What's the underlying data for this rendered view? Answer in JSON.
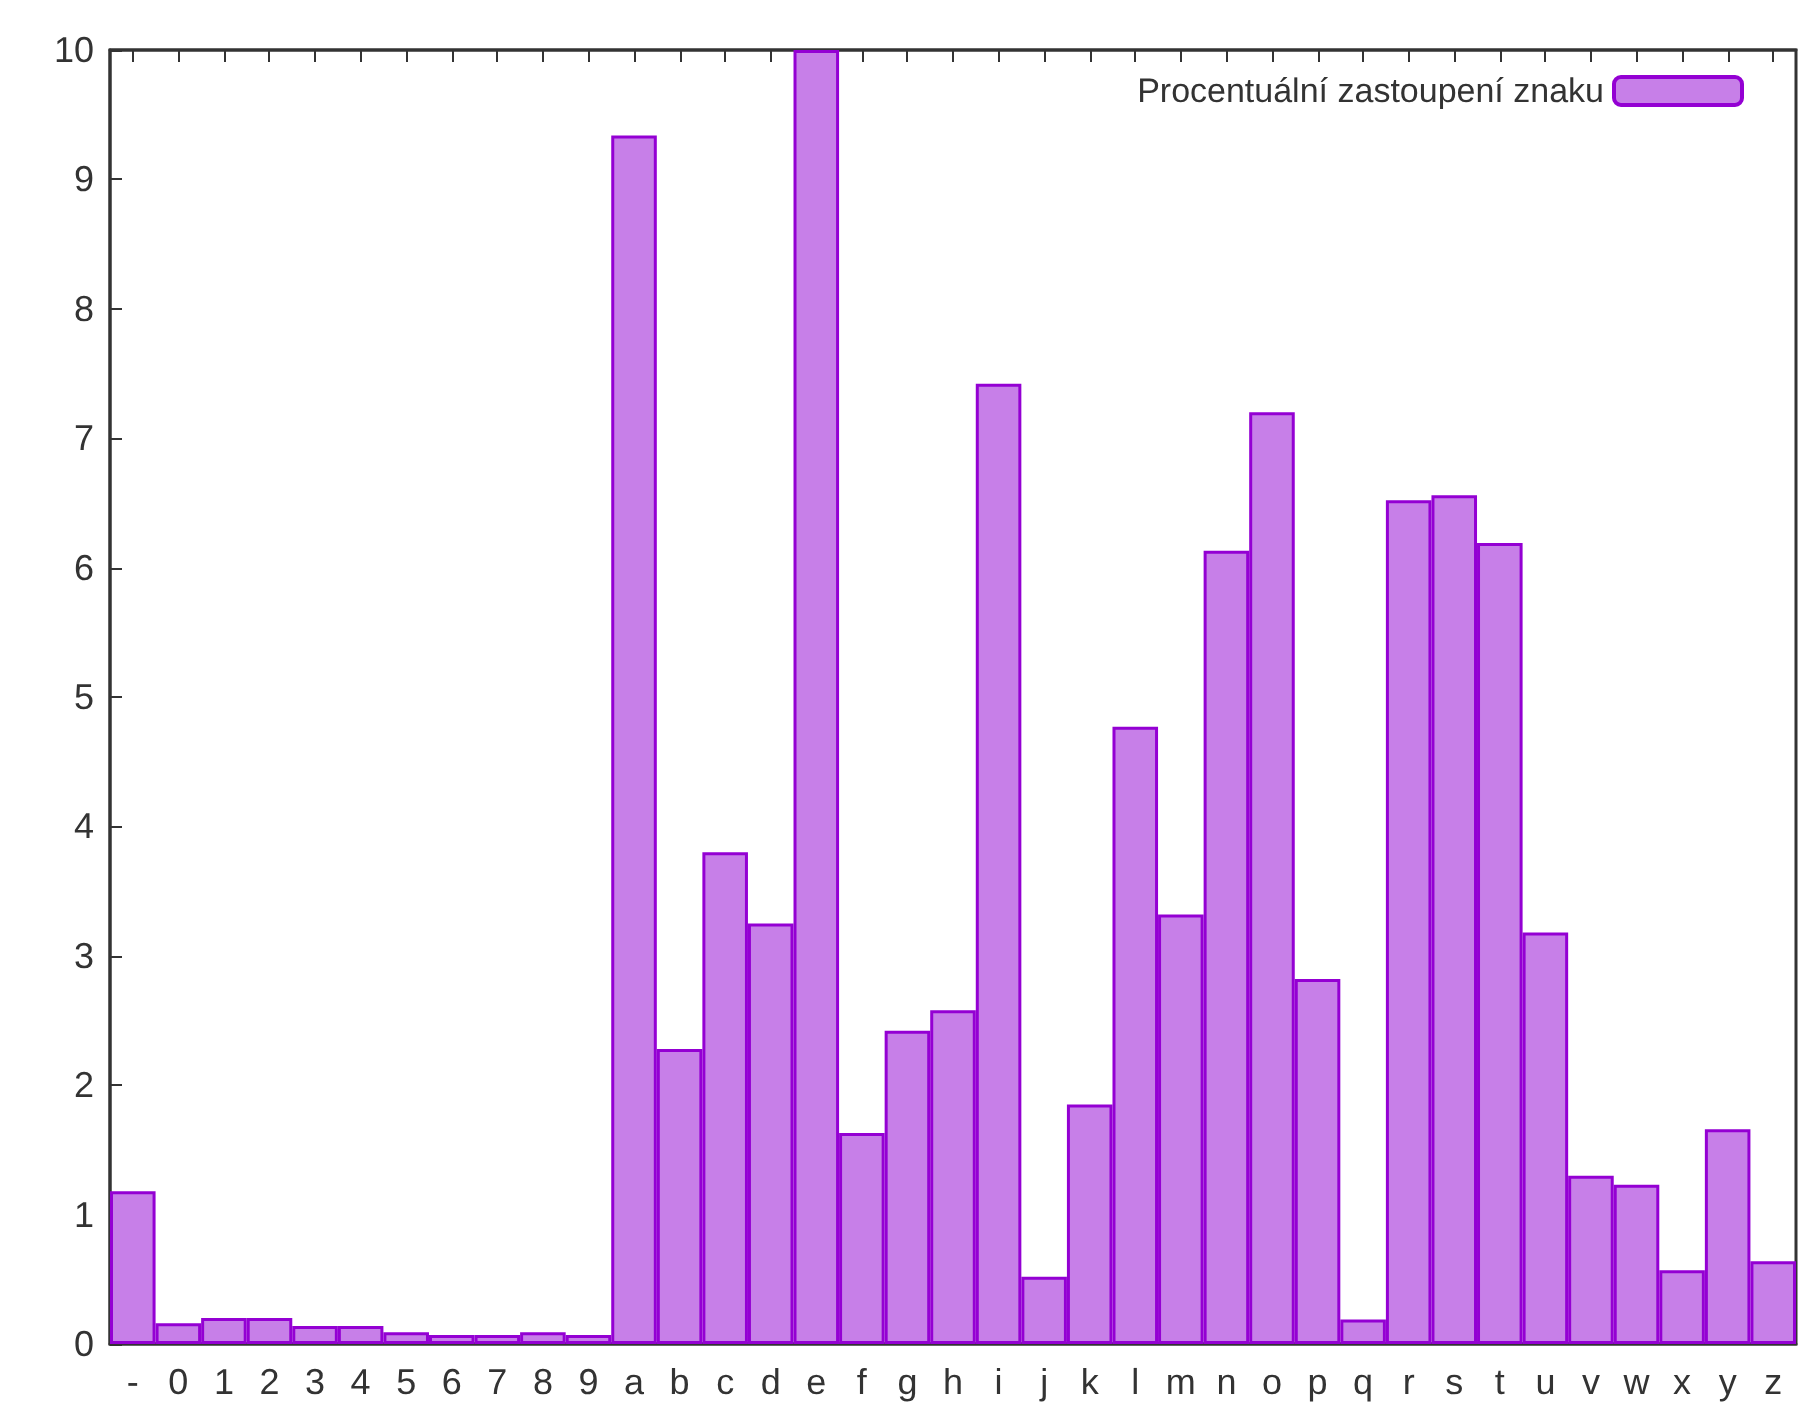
{
  "chart_data": {
    "type": "bar",
    "categories": [
      "-",
      "0",
      "1",
      "2",
      "3",
      "4",
      "5",
      "6",
      "7",
      "8",
      "9",
      "a",
      "b",
      "c",
      "d",
      "e",
      "f",
      "g",
      "h",
      "i",
      "j",
      "k",
      "l",
      "m",
      "n",
      "o",
      "p",
      "q",
      "r",
      "s",
      "t",
      "u",
      "v",
      "w",
      "x",
      "y",
      "z"
    ],
    "series": [
      {
        "name": "Procentuální zastoupení znaku",
        "color": "#c77fe8",
        "values": [
          1.18,
          0.16,
          0.2,
          0.2,
          0.14,
          0.14,
          0.09,
          0.07,
          0.07,
          0.09,
          0.07,
          9.34,
          2.28,
          3.8,
          3.25,
          10,
          1.63,
          2.42,
          2.58,
          7.42,
          0.52,
          1.85,
          4.77,
          3.32,
          6.13,
          7.2,
          2.82,
          0.19,
          6.52,
          6.56,
          6.19,
          3.18,
          1.3,
          1.23,
          0.57,
          1.66,
          0.64
        ]
      }
    ],
    "ylim": [
      0,
      10
    ],
    "yticks": [
      0,
      1,
      2,
      3,
      4,
      5,
      6,
      7,
      8,
      9,
      10
    ],
    "grid": false,
    "legend": "top right"
  }
}
